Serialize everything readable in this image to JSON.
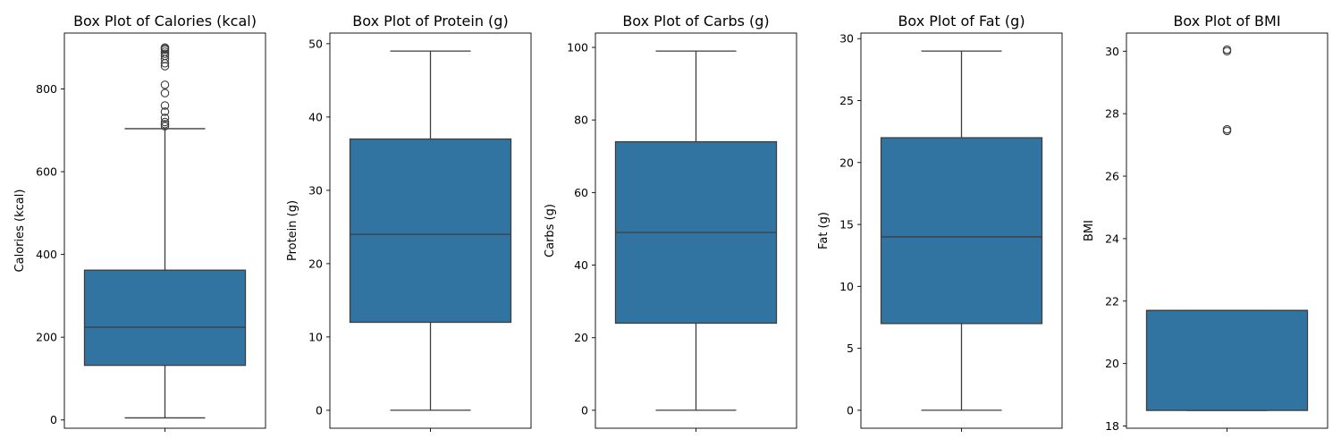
{
  "chart_data": [
    {
      "type": "box",
      "title": "Box Plot of Calories (kcal)",
      "ylabel": "Calories (kcal)",
      "ylim": [
        -20,
        935
      ],
      "yticks": [
        0,
        200,
        400,
        600,
        800
      ],
      "ytick_labels": [
        "0",
        "200",
        "400",
        "600",
        "800"
      ],
      "whisker_low": 5,
      "q1": 132,
      "median": 224,
      "q3": 362,
      "whisker_high": 704,
      "outliers": [
        710,
        715,
        720,
        730,
        745,
        760,
        790,
        810,
        855,
        862,
        872,
        880,
        885,
        890,
        895,
        898,
        900
      ],
      "color": "#3274a1",
      "grid": false
    },
    {
      "type": "box",
      "title": "Box Plot of Protein (g)",
      "ylabel": "Protein (g)",
      "ylim": [
        -2.45,
        51.45
      ],
      "yticks": [
        0,
        10,
        20,
        30,
        40,
        50
      ],
      "ytick_labels": [
        "0",
        "10",
        "20",
        "30",
        "40",
        "50"
      ],
      "whisker_low": 0,
      "q1": 12,
      "median": 24,
      "q3": 37,
      "whisker_high": 49,
      "outliers": [],
      "color": "#3274a1",
      "grid": false
    },
    {
      "type": "box",
      "title": "Box Plot of Carbs (g)",
      "ylabel": "Carbs (g)",
      "ylim": [
        -4.95,
        103.95
      ],
      "yticks": [
        0,
        20,
        40,
        60,
        80,
        100
      ],
      "ytick_labels": [
        "0",
        "20",
        "40",
        "60",
        "80",
        "100"
      ],
      "whisker_low": 0,
      "q1": 24,
      "median": 49,
      "q3": 74,
      "whisker_high": 99,
      "outliers": [],
      "color": "#3274a1",
      "grid": false
    },
    {
      "type": "box",
      "title": "Box Plot of Fat (g)",
      "ylabel": "Fat (g)",
      "ylim": [
        -1.45,
        30.45
      ],
      "yticks": [
        0,
        5,
        10,
        15,
        20,
        25,
        30
      ],
      "ytick_labels": [
        "0",
        "5",
        "10",
        "15",
        "20",
        "25",
        "30"
      ],
      "whisker_low": 0,
      "q1": 7,
      "median": 14,
      "q3": 22,
      "whisker_high": 29,
      "outliers": [],
      "color": "#3274a1",
      "grid": false
    },
    {
      "type": "box",
      "title": "Box Plot of BMI",
      "ylabel": "BMI",
      "ylim": [
        17.93,
        30.58
      ],
      "yticks": [
        18,
        20,
        22,
        24,
        26,
        28,
        30
      ],
      "ytick_labels": [
        "18",
        "20",
        "22",
        "24",
        "26",
        "28",
        "30"
      ],
      "whisker_low": 18.5,
      "q1": 18.5,
      "median": 21.7,
      "q3": 21.7,
      "whisker_high": 21.7,
      "outliers": [
        27.45,
        27.5,
        30.0,
        30.05
      ],
      "color": "#3274a1",
      "grid": false
    }
  ]
}
